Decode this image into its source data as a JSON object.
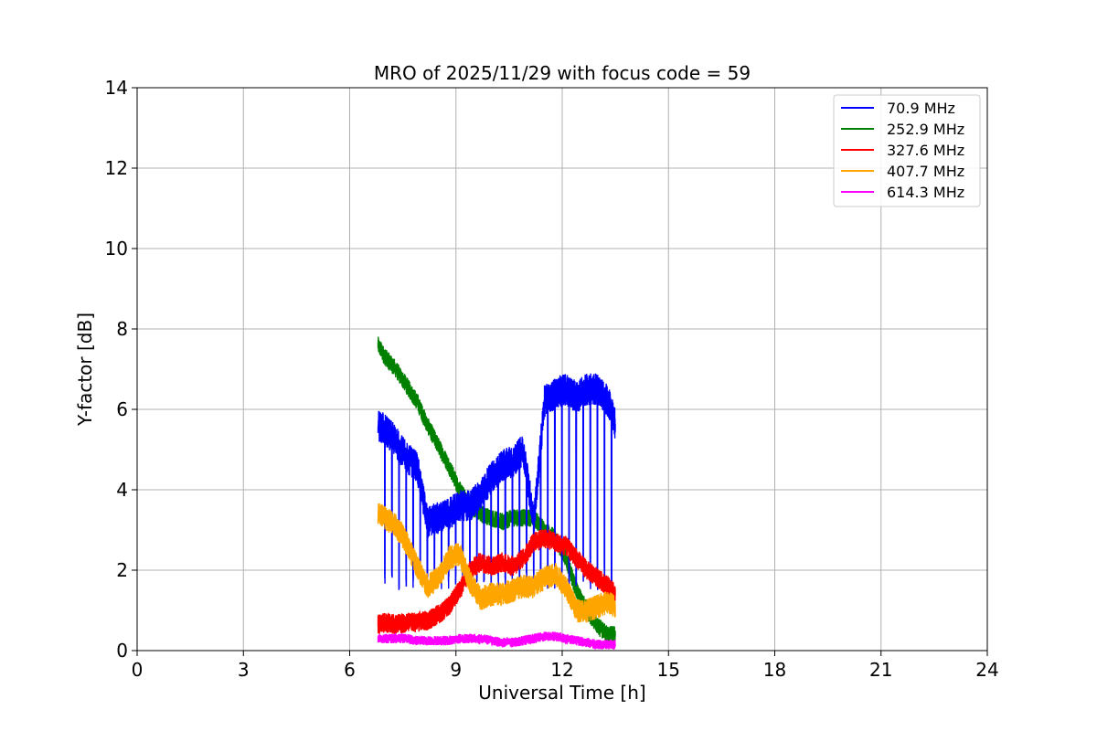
{
  "chart_data": {
    "type": "line",
    "title": "MRO of 2025/11/29 with focus code = 59",
    "xlabel": "Universal Time [h]",
    "ylabel": "Y-factor [dB]",
    "xlim": [
      0,
      24
    ],
    "ylim": [
      0,
      14
    ],
    "xticks": [
      0,
      3,
      6,
      9,
      12,
      15,
      18,
      21,
      24
    ],
    "yticks": [
      0,
      2,
      4,
      6,
      8,
      10,
      12,
      14
    ],
    "grid": true,
    "legend_position": "top-right",
    "series": [
      {
        "name": " 70.9 MHz",
        "color": "#0000ff",
        "x": [
          6.8,
          7.0,
          7.3,
          7.6,
          7.9,
          8.2,
          8.5,
          8.8,
          9.1,
          9.4,
          9.7,
          10.0,
          10.3,
          10.6,
          10.9,
          11.2,
          11.5,
          11.8,
          12.1,
          12.4,
          12.7,
          13.0,
          13.3,
          13.5
        ],
        "y": [
          5.6,
          5.5,
          5.2,
          4.8,
          4.6,
          3.2,
          3.3,
          3.4,
          3.6,
          3.6,
          3.9,
          4.3,
          4.6,
          4.7,
          5.0,
          3.2,
          6.2,
          6.4,
          6.5,
          6.3,
          6.5,
          6.5,
          6.2,
          5.6
        ],
        "dip_floor": 1.5,
        "noise": 0.4
      },
      {
        "name": "252.9 MHz",
        "color": "#008000",
        "x": [
          6.8,
          7.0,
          7.3,
          7.6,
          7.9,
          8.2,
          8.5,
          8.8,
          9.1,
          9.4,
          9.7,
          10.0,
          10.3,
          10.6,
          10.9,
          11.2,
          11.5,
          11.8,
          12.1,
          12.4,
          12.7,
          13.0,
          13.3,
          13.5
        ],
        "y": [
          7.6,
          7.3,
          7.0,
          6.6,
          6.2,
          5.6,
          5.1,
          4.6,
          4.0,
          3.6,
          3.4,
          3.3,
          3.2,
          3.3,
          3.3,
          3.3,
          3.0,
          2.8,
          2.3,
          1.5,
          1.0,
          0.6,
          0.4,
          0.4
        ],
        "noise": 0.22
      },
      {
        "name": "327.6 MHz",
        "color": "#ff0000",
        "x": [
          6.8,
          7.0,
          7.3,
          7.6,
          7.9,
          8.2,
          8.5,
          8.8,
          9.1,
          9.4,
          9.7,
          10.0,
          10.3,
          10.6,
          10.9,
          11.2,
          11.5,
          11.8,
          12.1,
          12.4,
          12.7,
          13.0,
          13.3,
          13.5
        ],
        "y": [
          0.65,
          0.7,
          0.65,
          0.7,
          0.7,
          0.75,
          0.9,
          1.1,
          1.5,
          2.0,
          2.2,
          2.1,
          2.2,
          2.1,
          2.3,
          2.7,
          2.8,
          2.7,
          2.6,
          2.3,
          2.0,
          1.8,
          1.6,
          1.4
        ],
        "noise": 0.25
      },
      {
        "name": "407.7 MHz",
        "color": "#ffa500",
        "x": [
          6.8,
          7.0,
          7.3,
          7.6,
          7.9,
          8.2,
          8.5,
          8.8,
          9.1,
          9.4,
          9.7,
          10.0,
          10.3,
          10.6,
          10.9,
          11.2,
          11.5,
          11.8,
          12.1,
          12.4,
          12.7,
          13.0,
          13.3,
          13.5
        ],
        "y": [
          3.4,
          3.3,
          3.1,
          2.7,
          2.1,
          1.6,
          1.8,
          2.3,
          2.4,
          1.7,
          1.3,
          1.4,
          1.4,
          1.5,
          1.6,
          1.6,
          1.8,
          1.9,
          1.6,
          1.0,
          1.0,
          1.1,
          1.2,
          1.1
        ],
        "noise": 0.3
      },
      {
        "name": "614.3 MHz",
        "color": "#ff00ff",
        "x": [
          6.8,
          7.0,
          7.3,
          7.6,
          7.9,
          8.2,
          8.5,
          8.8,
          9.1,
          9.4,
          9.7,
          10.0,
          10.3,
          10.6,
          10.9,
          11.2,
          11.5,
          11.8,
          12.1,
          12.4,
          12.7,
          13.0,
          13.3,
          13.5
        ],
        "y": [
          0.3,
          0.3,
          0.3,
          0.3,
          0.25,
          0.25,
          0.25,
          0.25,
          0.3,
          0.3,
          0.3,
          0.25,
          0.2,
          0.2,
          0.25,
          0.3,
          0.35,
          0.35,
          0.3,
          0.25,
          0.2,
          0.15,
          0.15,
          0.15
        ],
        "noise": 0.12
      }
    ]
  }
}
